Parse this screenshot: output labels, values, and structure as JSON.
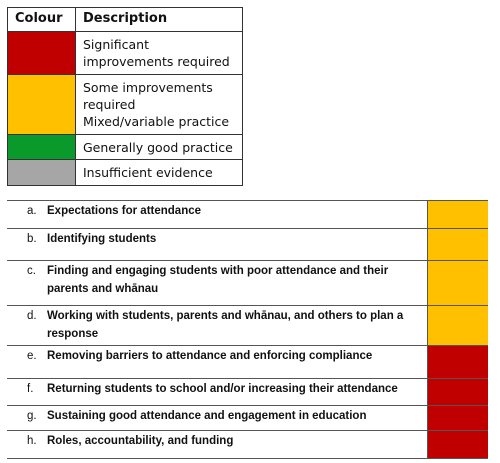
{
  "legend": {
    "headers": [
      "Colour",
      "Description"
    ],
    "rows": [
      {
        "color": "#c00000",
        "description": [
          "Significant",
          "improvements required"
        ]
      },
      {
        "color": "#ffc000",
        "description": [
          "Some improvements",
          "required",
          "Mixed/variable practice"
        ]
      },
      {
        "color": "#0a9a2c",
        "description": [
          "Generally good practice"
        ]
      },
      {
        "color": "#a6a6a6",
        "description": [
          "Insufficient evidence"
        ]
      }
    ]
  },
  "criteria": {
    "rows": [
      {
        "letter": "a.",
        "text": [
          "Expectations for attendance"
        ],
        "color": "#ffc000"
      },
      {
        "letter": "b.",
        "text": [
          "Identifying students"
        ],
        "color": "#ffc000"
      },
      {
        "letter": "c.",
        "text": [
          "Finding and engaging students with poor attendance and their",
          "parents and whānau"
        ],
        "color": "#ffc000"
      },
      {
        "letter": "d.",
        "text": [
          "Working with students, parents and whānau, and others to plan a",
          "response"
        ],
        "color": "#ffc000"
      },
      {
        "letter": "e.",
        "text": [
          "Removing barriers to attendance and enforcing compliance"
        ],
        "color": "#c00000"
      },
      {
        "letter": "f.",
        "text": [
          "Returning students to school and/or increasing their attendance"
        ],
        "color": "#c00000"
      },
      {
        "letter": "g.",
        "text": [
          "Sustaining good attendance and engagement in education"
        ],
        "color": "#c00000"
      },
      {
        "letter": "h.",
        "text": [
          "Roles, accountability, and funding"
        ],
        "color": "#c00000"
      }
    ]
  }
}
